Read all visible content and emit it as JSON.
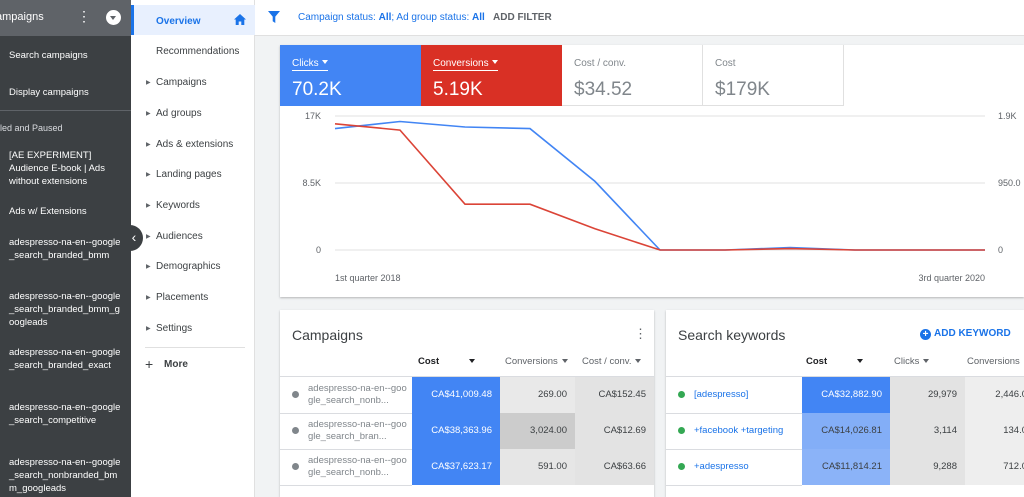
{
  "left_panel": {
    "header_title": "ampaigns",
    "items_top": [
      "Search campaigns",
      "Display campaigns"
    ],
    "section_label": "led and Paused",
    "items": [
      "[AE EXPERIMENT] Audience E-book | Ads without extensions",
      "Ads w/ Extensions",
      "adespresso-na-en--google_search_branded_bmm",
      "adespresso-na-en--google_search_branded_bmm_googleads",
      "adespresso-na-en--google_search_branded_exact",
      "adespresso-na-en--google_search_competitive",
      "adespresso-na-en--google_search_nonbranded_bmm_googleads"
    ]
  },
  "nav": {
    "active": "Overview",
    "items": [
      "Recommendations",
      "Campaigns",
      "Ad groups",
      "Ads & extensions",
      "Landing pages",
      "Keywords",
      "Audiences",
      "Demographics",
      "Placements",
      "Settings"
    ],
    "more": "More"
  },
  "filter_bar": {
    "campaign_status_label": "Campaign status:",
    "campaign_status_value": "All",
    "adgroup_status_label": "Ad group status:",
    "adgroup_status_value": "All",
    "add_filter": "ADD FILTER"
  },
  "metrics": [
    {
      "label": "Clicks",
      "value": "70.2K",
      "color": "#4285f4"
    },
    {
      "label": "Conversions",
      "value": "5.19K",
      "color": "#d93025"
    },
    {
      "label": "Cost / conv.",
      "value": "$34.52"
    },
    {
      "label": "Cost",
      "value": "$179K"
    }
  ],
  "chart_data": {
    "type": "line",
    "x_labels": [
      "1st quarter 2018",
      "3rd quarter 2020"
    ],
    "left_axis": {
      "ticks": [
        "17K",
        "8.5K",
        "0"
      ],
      "range": [
        0,
        17000
      ]
    },
    "right_axis": {
      "ticks": [
        "1.9K",
        "950.0",
        "0"
      ],
      "range": [
        0,
        1900
      ]
    },
    "series": [
      {
        "color": "#4285f4",
        "axis": "left",
        "values": [
          15400,
          16300,
          15600,
          15400,
          8700,
          0,
          0,
          300,
          0,
          0,
          0
        ]
      },
      {
        "color": "#db4437",
        "axis": "right",
        "values": [
          1790,
          1700,
          650,
          650,
          300,
          0,
          0,
          20,
          0,
          0,
          0
        ]
      }
    ]
  },
  "campaigns_table": {
    "title": "Campaigns",
    "columns": [
      "Cost",
      "Conversions",
      "Cost / conv."
    ],
    "rows": [
      {
        "name": "adespresso-na-en--google_search_nonb...",
        "cost": "CA$41,009.48",
        "conversions": "269.00",
        "cpc": "CA$152.45",
        "conv_level": 0.09
      },
      {
        "name": "adespresso-na-en--google_search_bran...",
        "cost": "CA$38,363.96",
        "conversions": "3,024.00",
        "cpc": "CA$12.69",
        "conv_level": 1.0
      },
      {
        "name": "adespresso-na-en--google_search_nonb...",
        "cost": "CA$37,623.17",
        "conversions": "591.00",
        "cpc": "CA$63.66",
        "conv_level": 0.2
      }
    ]
  },
  "keywords_table": {
    "title": "Search keywords",
    "add_keyword": "ADD KEYWORD",
    "columns": [
      "Cost",
      "Clicks",
      "Conversions"
    ],
    "rows": [
      {
        "keyword": "[adespresso]",
        "cost": "CA$32,882.90",
        "clicks": "29,979",
        "conversions": "2,446.0",
        "cost_level": 1.0
      },
      {
        "keyword": "+facebook +targeting",
        "cost": "CA$14,026.81",
        "clicks": "3,114",
        "conversions": "134.0",
        "cost_level": 0.43
      },
      {
        "keyword": "+adespresso",
        "cost": "CA$11,814.21",
        "clicks": "9,288",
        "conversions": "712.0",
        "cost_level": 0.36
      }
    ]
  }
}
